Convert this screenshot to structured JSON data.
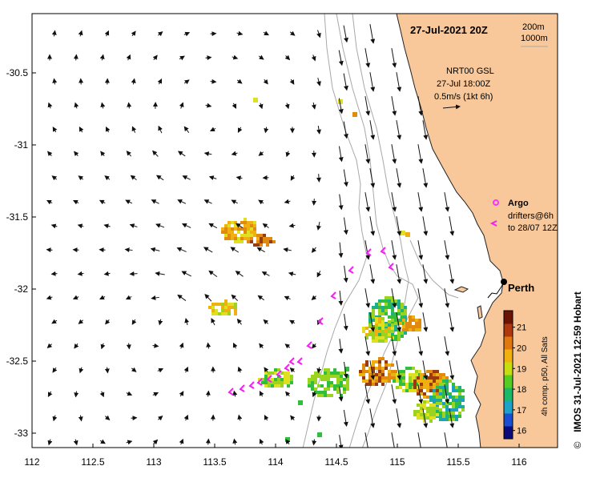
{
  "title": "27-Jul-2021 20Z",
  "isobaths": {
    "depth_a": "200m",
    "depth_b": "1000m"
  },
  "current_info": {
    "line1": "NRT00 GSL",
    "line2": "27-Jul 18:00Z",
    "line3": "0.5m/s (1kt 6h)"
  },
  "legend": {
    "argo_label": "Argo",
    "drifters_line1": "drifters@6h",
    "drifters_line2": "to 28/07 12Z"
  },
  "city": {
    "name": "Perth"
  },
  "colorbar": {
    "label": "4h comp. p50, All Sats",
    "ticks": [
      "16",
      "17",
      "18",
      "19",
      "20",
      "21"
    ],
    "min": 15.6,
    "max": 21.8,
    "colors": [
      "#0b0b7a",
      "#1a4fd0",
      "#1fa2c8",
      "#1cb86a",
      "#55cc22",
      "#c8dd10",
      "#f0b010",
      "#e07810",
      "#b03810",
      "#6a1406"
    ]
  },
  "credit": "IMOS 31-Jul-2021 12:59 Hobart",
  "copyright": "©",
  "axes": {
    "x_labels": [
      "112",
      "112.5",
      "113",
      "113.5",
      "114",
      "114.5",
      "115",
      "115.5",
      "116"
    ],
    "y_labels": [
      "-30.5",
      "-31",
      "-31.5",
      "-32",
      "-32.5",
      "-33"
    ]
  },
  "colors": {
    "land": "#f8c89a",
    "isobath": "#a8a8a8",
    "argo": "#ff33ff",
    "drifter": "#ee22ee"
  }
}
